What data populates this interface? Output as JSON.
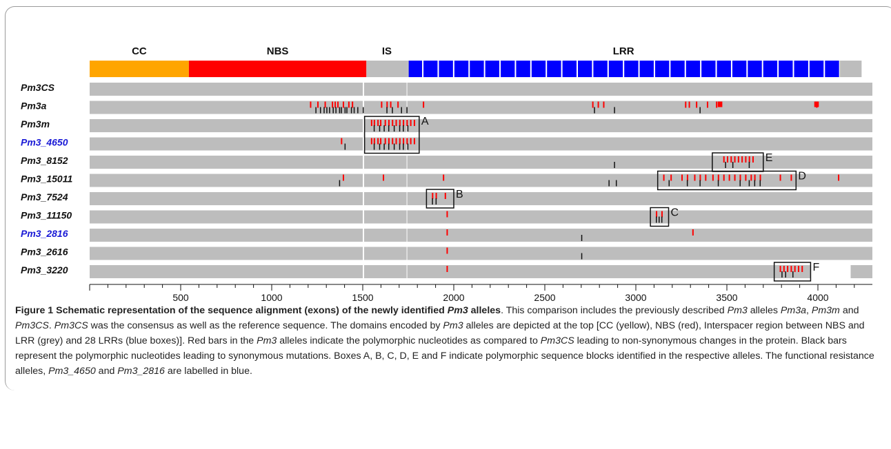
{
  "figure": {
    "domains": [
      {
        "name": "CC",
        "start": 0,
        "end": 545,
        "color": "#ffa500"
      },
      {
        "name": "NBS",
        "start": 545,
        "end": 1520,
        "color": "#ff0000"
      },
      {
        "name": "IS",
        "start": 1520,
        "end": 1745,
        "color": "#bdbdbd"
      },
      {
        "name": "LRR",
        "start": 1745,
        "end": 4120,
        "color": "#0000ff",
        "boxes": 28
      },
      {
        "name": "",
        "start": 4120,
        "end": 4240,
        "color": "#bdbdbd"
      }
    ],
    "axis": {
      "min": 0,
      "max": 4240,
      "ticks": [
        "500",
        "1000",
        "1500",
        "2000",
        "2500",
        "3000",
        "3500",
        "4000"
      ]
    },
    "alleles": [
      {
        "name": "Pm3CS",
        "blue": false,
        "red": [],
        "black": []
      },
      {
        "name": "Pm3a",
        "blue": false,
        "red": [
          1210,
          1250,
          1290,
          1330,
          1345,
          1360,
          1390,
          1420,
          1440,
          1600,
          1630,
          1650,
          1690,
          1830,
          2760,
          2790,
          2820,
          3270,
          3290,
          3330,
          3390,
          3440,
          3990
        ],
        "black": [
          1240,
          1265,
          1285,
          1300,
          1315,
          1335,
          1350,
          1370,
          1380,
          1400,
          1410,
          1435,
          1450,
          1470,
          1500,
          1630,
          1660,
          1710,
          1740,
          2770,
          2880,
          3350
        ],
        "blocks": [
          {
            "x": 3450,
            "w": 25
          },
          {
            "x": 3980,
            "w": 25
          }
        ]
      },
      {
        "name": "Pm3m",
        "blue": false,
        "red": [
          1545,
          1560,
          1580,
          1595,
          1620,
          1640,
          1660,
          1680,
          1700,
          1720,
          1740,
          1760,
          1780
        ],
        "black": [
          1560,
          1590,
          1615,
          1640,
          1670,
          1700,
          1720,
          1745
        ]
      },
      {
        "name": "Pm3_4650",
        "blue": true,
        "red": [
          1380,
          1545,
          1560,
          1580,
          1595,
          1620,
          1640,
          1660,
          1680,
          1700,
          1720,
          1740,
          1760,
          1780
        ],
        "black": [
          1400,
          1560,
          1590,
          1615,
          1640,
          1670,
          1700,
          1720,
          1745
        ]
      },
      {
        "name": "Pm3_8152",
        "blue": false,
        "red": [
          3480,
          3500,
          3520,
          3540,
          3560,
          3580,
          3600,
          3620,
          3640
        ],
        "black": [
          2880,
          3490,
          3530,
          3620
        ]
      },
      {
        "name": "Pm3_15011",
        "blue": false,
        "red": [
          1390,
          1610,
          1940,
          3150,
          3190,
          3250,
          3280,
          3320,
          3350,
          3380,
          3420,
          3450,
          3480,
          3510,
          3540,
          3570,
          3600,
          3630,
          3650,
          3680,
          3790,
          3850,
          4110
        ],
        "black": [
          1370,
          2850,
          2890,
          3180,
          3280,
          3350,
          3450,
          3570,
          3620,
          3650,
          3680
        ]
      },
      {
        "name": "Pm3_7524",
        "blue": false,
        "red": [
          1880,
          1900,
          1950
        ],
        "black": [
          1880,
          1900
        ]
      },
      {
        "name": "Pm3_11150",
        "blue": false,
        "red": [
          1960,
          3110,
          3140
        ],
        "black": [
          3110,
          3125,
          3140
        ]
      },
      {
        "name": "Pm3_2816",
        "blue": true,
        "red": [
          1960,
          3310
        ],
        "black": [
          2700
        ]
      },
      {
        "name": "Pm3_2616",
        "blue": false,
        "red": [
          1960
        ],
        "black": [
          2700
        ]
      },
      {
        "name": "Pm3_3220",
        "blue": false,
        "red": [
          1960,
          3790,
          3810,
          3830,
          3850,
          3870,
          3890,
          3910
        ],
        "black": [
          3800,
          3820,
          3860
        ]
      }
    ],
    "boxes": [
      {
        "letter": "A",
        "row": 2,
        "row_end": 3,
        "start": 1510,
        "end": 1810
      },
      {
        "letter": "B",
        "row": 6,
        "row_end": 6,
        "start": 1850,
        "end": 2000
      },
      {
        "letter": "C",
        "row": 7,
        "row_end": 7,
        "start": 3080,
        "end": 3180
      },
      {
        "letter": "D",
        "row": 5,
        "row_end": 5,
        "start": 3120,
        "end": 3880
      },
      {
        "letter": "E",
        "row": 4,
        "row_end": 4,
        "start": 3420,
        "end": 3700
      },
      {
        "letter": "F",
        "row": 10,
        "row_end": 10,
        "start": 3760,
        "end": 3960
      }
    ]
  },
  "caption": {
    "title": "Figure 1 Schematic representation of the sequence alignment (exons) of the newly identified ",
    "title_italic": "Pm3",
    "title_end": " alleles",
    "body": [
      {
        "t": ". This comparison includes the previously described "
      },
      {
        "i": "Pm3"
      },
      {
        "t": " alleles "
      },
      {
        "i": "Pm3a"
      },
      {
        "t": ", "
      },
      {
        "i": "Pm3m"
      },
      {
        "t": " and "
      },
      {
        "i": "Pm3CS"
      },
      {
        "t": ". "
      },
      {
        "i": "Pm3CS"
      },
      {
        "t": " was the consensus as well as the reference sequence. The domains encoded by "
      },
      {
        "i": "Pm3"
      },
      {
        "t": " alleles are depicted at the top [CC (yellow), NBS (red), Interspacer region between NBS and LRR (grey) and 28 LRRs (blue boxes)]. Red bars in the "
      },
      {
        "i": "Pm3"
      },
      {
        "t": " alleles indicate the polymorphic nucleotides as compared to "
      },
      {
        "i": "Pm3CS"
      },
      {
        "t": " leading to non-synonymous changes in the protein. Black bars represent the polymorphic nucleotides leading to synonymous mutations. Boxes A, B, C, D, E and F indicate polymorphic sequence blocks identified in the respective alleles. The functional resistance alleles, "
      },
      {
        "i": "Pm3_4650"
      },
      {
        "t": " and "
      },
      {
        "i": "Pm3_2816"
      },
      {
        "t": " are labelled in blue."
      }
    ]
  }
}
